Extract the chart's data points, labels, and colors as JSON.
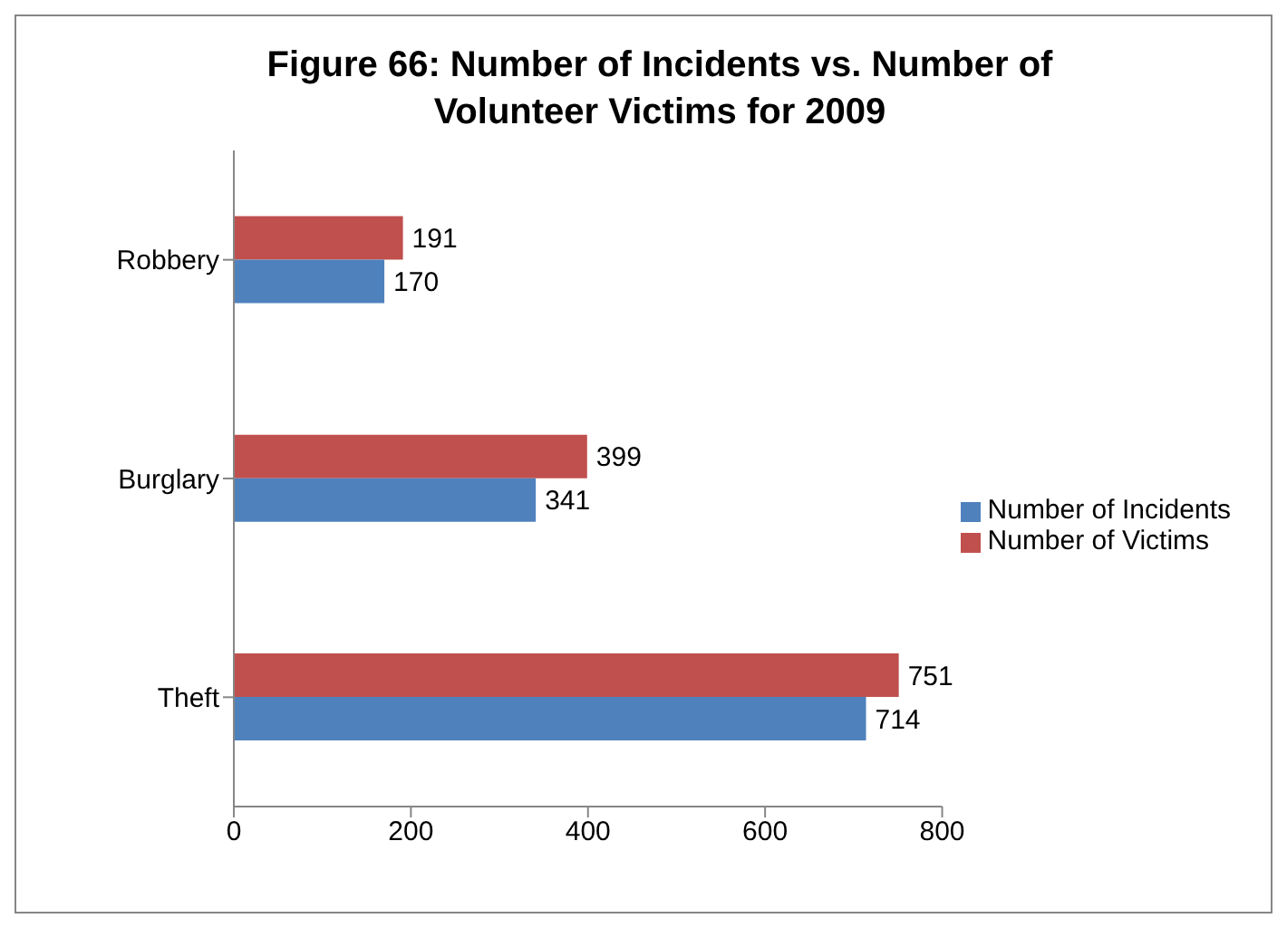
{
  "chart_data": {
    "type": "bar",
    "orientation": "horizontal",
    "title": "Figure 66:  Number of Incidents vs. Number of Volunteer Victims for 2009",
    "categories": [
      "Robbery",
      "Burglary",
      "Theft"
    ],
    "series": [
      {
        "name": "Number of Victims",
        "color": "#c0504d",
        "values": [
          191,
          399,
          751
        ]
      },
      {
        "name": "Number of Incidents",
        "color": "#4f81bd",
        "values": [
          170,
          341,
          714
        ]
      }
    ],
    "xlim": [
      0,
      800
    ],
    "xticks": [
      0,
      200,
      400,
      600,
      800
    ],
    "grid": false,
    "legend": "right",
    "data_labels": true
  }
}
